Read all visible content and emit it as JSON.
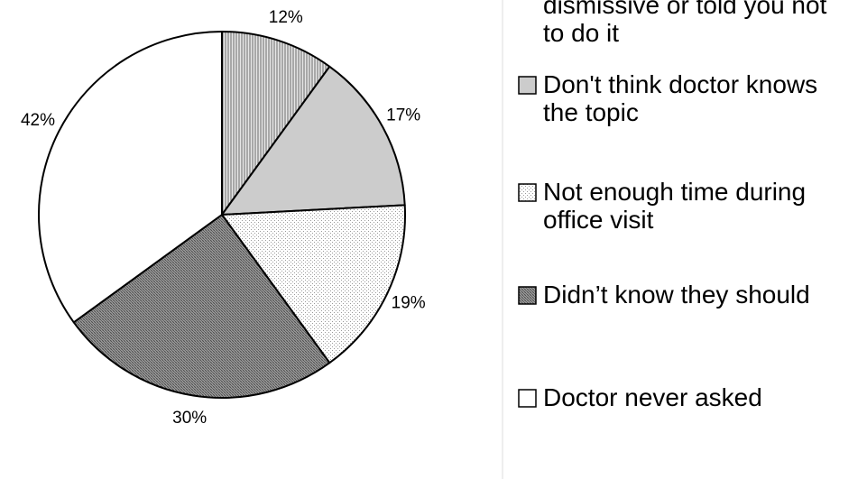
{
  "chart_data": {
    "type": "pie",
    "start_angle_deg": 0,
    "direction": "clockwise",
    "slices": [
      {
        "label": "12%",
        "value": 12,
        "category_lines": [
          "dismissive or told you not",
          "to do it"
        ],
        "pattern": "vlines",
        "color": "#777777"
      },
      {
        "label": "17%",
        "value": 17,
        "category_lines": [
          "Don't think doctor knows",
          "the topic"
        ],
        "pattern": "solid",
        "color": "#cccccc"
      },
      {
        "label": "19%",
        "value": 19,
        "category_lines": [
          "Not enough time during",
          "office visit"
        ],
        "pattern": "dots",
        "color": "#f2f2f2"
      },
      {
        "label": "30%",
        "value": 30,
        "category_lines": [
          "Didn’t know they should"
        ],
        "pattern": "dense",
        "color": "#8a8a8a"
      },
      {
        "label": "42%",
        "value": 42,
        "category_lines": [
          "Doctor never asked"
        ],
        "pattern": "none",
        "color": "#ffffff"
      }
    ],
    "legend_position": "right"
  }
}
